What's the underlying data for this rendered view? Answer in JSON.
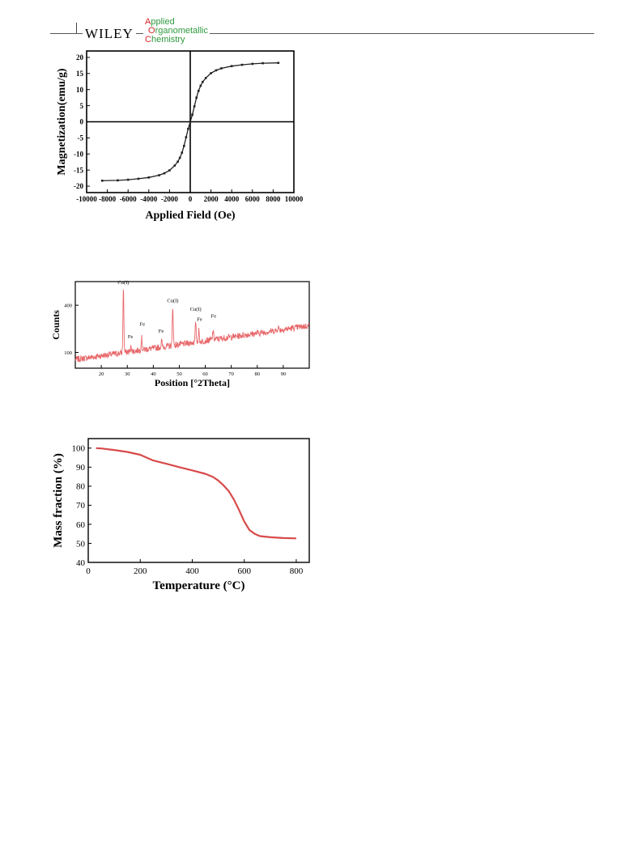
{
  "header": {
    "brand": "WILEY",
    "journal_lines": [
      "Applied",
      "Organometallic",
      "Chemistry"
    ]
  },
  "chart_data": [
    {
      "type": "line",
      "xlabel": "Applied Field (Oe)",
      "ylabel": "Magnetization(emu/g)",
      "xlim": [
        -10000,
        10000
      ],
      "ylim": [
        -22,
        22
      ],
      "xticks": [
        -10000,
        -8000,
        -6000,
        -4000,
        -2000,
        0,
        2000,
        4000,
        6000,
        8000,
        10000
      ],
      "yticks": [
        -20,
        -15,
        -10,
        -5,
        0,
        5,
        10,
        15,
        20
      ],
      "zero_axes": true,
      "marker": "square-dots",
      "color": "#222222",
      "series": [
        {
          "x": [
            -8500,
            -7000,
            -6000,
            -5000,
            -4000,
            -3000,
            -2500,
            -2000,
            -1500,
            -1200,
            -1000,
            -800,
            -600,
            -400,
            -200,
            0,
            200,
            400,
            600,
            800,
            1000,
            1200,
            1500,
            2000,
            2500,
            3000,
            4000,
            5000,
            6000,
            7000,
            8500
          ],
          "y": [
            -18.3,
            -18.2,
            -18.0,
            -17.7,
            -17.3,
            -16.6,
            -16.0,
            -15.1,
            -13.6,
            -12.4,
            -11.2,
            -9.6,
            -7.5,
            -4.8,
            -2.2,
            0,
            2.2,
            4.8,
            7.5,
            9.6,
            11.2,
            12.4,
            13.6,
            15.1,
            16.0,
            16.6,
            17.3,
            17.7,
            18.0,
            18.2,
            18.3
          ]
        }
      ]
    },
    {
      "type": "line",
      "xlabel": "Position [°2Theta]",
      "ylabel": "Counts",
      "xlim": [
        10,
        100
      ],
      "ylim": [
        0,
        550
      ],
      "xticks": [
        20,
        30,
        40,
        50,
        60,
        70,
        80,
        90
      ],
      "yticks": [
        100,
        400
      ],
      "color": "#e8676a",
      "baseline": {
        "x": [
          10,
          100
        ],
        "y": [
          55,
          270
        ]
      },
      "peaks": [
        {
          "x": 28.5,
          "height": 420
        },
        {
          "x": 31.5,
          "height": 35
        },
        {
          "x": 35.5,
          "height": 80
        },
        {
          "x": 43.2,
          "height": 40
        },
        {
          "x": 47.5,
          "height": 250
        },
        {
          "x": 56.3,
          "height": 130
        },
        {
          "x": 57.5,
          "height": 70
        },
        {
          "x": 63.0,
          "height": 60
        },
        {
          "x": 88.0,
          "height": 25
        }
      ],
      "annotations": [
        {
          "text": "Cu(I)",
          "x": 28.5,
          "y": 535
        },
        {
          "text": "Fe",
          "x": 31.2,
          "y": 190
        },
        {
          "text": "Fe",
          "x": 35.8,
          "y": 270
        },
        {
          "text": "Fe",
          "x": 43.0,
          "y": 225
        },
        {
          "text": "Cu(I)",
          "x": 47.5,
          "y": 420
        },
        {
          "text": "Cu(I)",
          "x": 56.3,
          "y": 365
        },
        {
          "text": "Fe",
          "x": 57.8,
          "y": 300
        },
        {
          "text": "Fe",
          "x": 63.2,
          "y": 320
        }
      ]
    },
    {
      "type": "line",
      "xlabel": "Temperature (°C)",
      "ylabel": "Mass fraction (%)",
      "xlim": [
        0,
        850
      ],
      "ylim": [
        40,
        105
      ],
      "xticks": [
        0,
        200,
        400,
        600,
        800
      ],
      "yticks": [
        40,
        50,
        60,
        70,
        80,
        90,
        100
      ],
      "color": "#d84a4a",
      "series": [
        {
          "x": [
            30,
            50,
            100,
            150,
            200,
            250,
            300,
            350,
            400,
            450,
            480,
            500,
            520,
            540,
            560,
            580,
            600,
            620,
            640,
            660,
            700,
            750,
            800
          ],
          "y": [
            100,
            99.8,
            99.0,
            98.0,
            96.5,
            93.5,
            91.8,
            90.0,
            88.3,
            86.5,
            84.8,
            83.0,
            80.5,
            77.5,
            73.0,
            67.5,
            61.5,
            57.0,
            55.0,
            53.8,
            53.2,
            52.8,
            52.6
          ]
        }
      ]
    }
  ]
}
